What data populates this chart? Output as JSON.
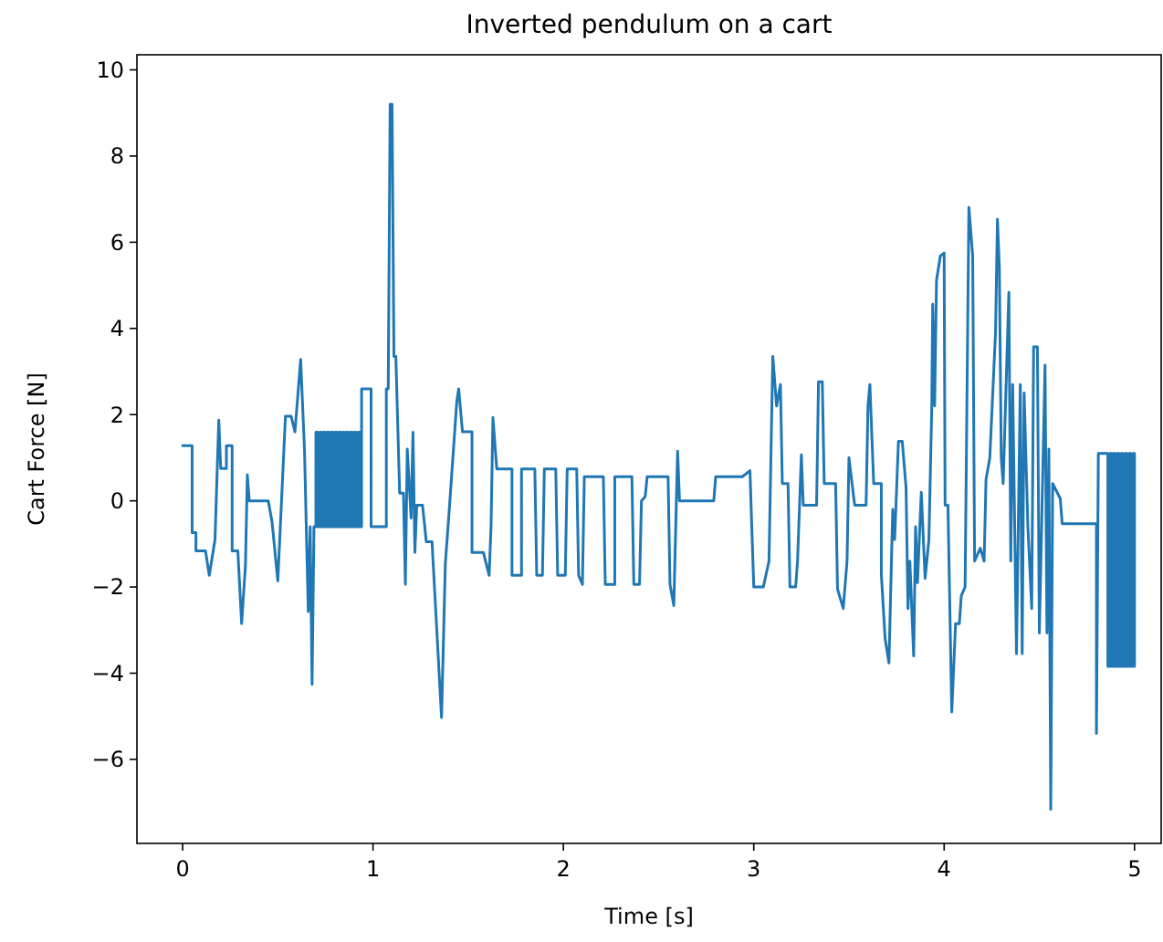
{
  "chart_data": {
    "type": "line",
    "title": "Inverted pendulum on a cart",
    "xlabel": "Time [s]",
    "ylabel": "Cart Force [N]",
    "xlim": [
      -0.24,
      5.14
    ],
    "ylim": [
      -7.95,
      10.35
    ],
    "xticks": [
      0,
      1,
      2,
      3,
      4,
      5
    ],
    "yticks": [
      {
        "value": -6,
        "label": "−6"
      },
      {
        "value": -4,
        "label": "−4"
      },
      {
        "value": -2,
        "label": "−2"
      },
      0,
      2,
      4,
      6,
      8,
      10
    ],
    "grid": false,
    "marker": "none",
    "line_style": "solid",
    "series": [
      {
        "color": "#1f77b4",
        "x": [
          0,
          0.05,
          0.05,
          0.07,
          0.07,
          0.12,
          0.14,
          0.17,
          0.19,
          0.2,
          0.23,
          0.23,
          0.26,
          0.26,
          0.29,
          0.31,
          0.33,
          0.34,
          0.35,
          0.45,
          0.47,
          0.5,
          0.54,
          0.57,
          0.59,
          0.62,
          0.64,
          0.66,
          0.67,
          0.68,
          0.69,
          0.7,
          0.7,
          0.71,
          0.71,
          0.72,
          0.72,
          0.73,
          0.73,
          0.74,
          0.74,
          0.75,
          0.75,
          0.76,
          0.76,
          0.77,
          0.77,
          0.78,
          0.78,
          0.79,
          0.79,
          0.8,
          0.8,
          0.81,
          0.81,
          0.82,
          0.82,
          0.83,
          0.83,
          0.84,
          0.84,
          0.85,
          0.85,
          0.86,
          0.86,
          0.87,
          0.87,
          0.88,
          0.88,
          0.89,
          0.89,
          0.9,
          0.9,
          0.91,
          0.91,
          0.92,
          0.92,
          0.93,
          0.93,
          0.94,
          0.94,
          0.99,
          0.99,
          1.07,
          1.07,
          1.08,
          1.09,
          1.1,
          1.11,
          1.12,
          1.14,
          1.16,
          1.17,
          1.18,
          1.2,
          1.21,
          1.22,
          1.23,
          1.26,
          1.28,
          1.31,
          1.36,
          1.38,
          1.4,
          1.44,
          1.45,
          1.47,
          1.52,
          1.52,
          1.58,
          1.61,
          1.62,
          1.63,
          1.65,
          1.73,
          1.73,
          1.78,
          1.78,
          1.85,
          1.86,
          1.89,
          1.9,
          1.96,
          1.97,
          2.01,
          2.02,
          2.07,
          2.08,
          2.1,
          2.11,
          2.21,
          2.22,
          2.27,
          2.27,
          2.36,
          2.37,
          2.4,
          2.41,
          2.43,
          2.44,
          2.55,
          2.56,
          2.58,
          2.6,
          2.61,
          2.79,
          2.8,
          2.94,
          2.98,
          3.0,
          3.05,
          3.08,
          3.1,
          3.12,
          3.14,
          3.15,
          3.18,
          3.19,
          3.22,
          3.23,
          3.25,
          3.26,
          3.33,
          3.34,
          3.36,
          3.37,
          3.43,
          3.44,
          3.47,
          3.49,
          3.5,
          3.53,
          3.59,
          3.6,
          3.61,
          3.63,
          3.67,
          3.67,
          3.69,
          3.71,
          3.73,
          3.74,
          3.76,
          3.78,
          3.8,
          3.81,
          3.82,
          3.84,
          3.85,
          3.86,
          3.88,
          3.9,
          3.92,
          3.935,
          3.94,
          3.95,
          3.96,
          3.98,
          4.0,
          4.005,
          4.02,
          4.04,
          4.06,
          4.08,
          4.09,
          4.11,
          4.13,
          4.15,
          4.16,
          4.19,
          4.21,
          4.22,
          4.24,
          4.27,
          4.28,
          4.29,
          4.3,
          4.31,
          4.34,
          4.35,
          4.36,
          4.38,
          4.4,
          4.41,
          4.42,
          4.44,
          4.46,
          4.47,
          4.49,
          4.5,
          4.53,
          4.54,
          4.55,
          4.56,
          4.57,
          4.61,
          4.62,
          4.8,
          4.8,
          4.81,
          4.86,
          4.86,
          4.87,
          4.87,
          4.88,
          4.88,
          4.89,
          4.89,
          4.9,
          4.9,
          4.91,
          4.91,
          4.92,
          4.92,
          4.93,
          4.93,
          4.94,
          4.94,
          4.95,
          4.95,
          4.96,
          4.96,
          4.97,
          4.97,
          4.98,
          4.98,
          4.99,
          4.99,
          5.0,
          5.0
        ],
        "values": [
          1.28,
          1.28,
          -0.74,
          -0.74,
          -1.16,
          -1.16,
          -1.73,
          -0.9,
          1.87,
          0.75,
          0.75,
          1.28,
          1.28,
          -1.16,
          -1.16,
          -2.85,
          -1.5,
          0.6,
          0,
          0,
          -0.5,
          -1.86,
          1.96,
          1.96,
          1.6,
          3.28,
          1.2,
          -2.57,
          -0.6,
          -4.26,
          -0.6,
          -0.6,
          1.59,
          1.59,
          -0.6,
          -0.6,
          1.59,
          1.59,
          -0.6,
          -0.6,
          1.59,
          1.59,
          -0.6,
          -0.6,
          1.59,
          1.59,
          -0.6,
          -0.6,
          1.59,
          1.59,
          -0.6,
          -0.6,
          1.59,
          1.59,
          -0.6,
          -0.6,
          1.59,
          1.59,
          -0.6,
          -0.6,
          1.59,
          1.59,
          -0.6,
          -0.6,
          1.59,
          1.59,
          -0.6,
          -0.6,
          1.59,
          1.59,
          -0.6,
          -0.6,
          1.59,
          1.59,
          -0.6,
          -0.6,
          1.59,
          1.59,
          -0.6,
          -0.6,
          2.6,
          2.6,
          -0.6,
          -0.6,
          2.6,
          2.6,
          9.2,
          9.2,
          3.35,
          3.35,
          0.18,
          0.18,
          -1.94,
          1.2,
          -0.4,
          1.59,
          -1.2,
          -0.1,
          -0.1,
          -0.95,
          -0.95,
          -5.03,
          -1.45,
          -0.25,
          2.3,
          2.6,
          1.6,
          1.6,
          -1.2,
          -1.2,
          -1.73,
          -0.6,
          1.93,
          0.74,
          0.74,
          -1.73,
          -1.73,
          0.74,
          0.74,
          -1.73,
          -1.73,
          0.74,
          0.74,
          -1.73,
          -1.73,
          0.74,
          0.74,
          -1.73,
          -1.94,
          0.56,
          0.56,
          -1.94,
          -1.94,
          0.56,
          0.56,
          -1.94,
          -1.94,
          0,
          0.1,
          0.56,
          0.56,
          -1.94,
          -2.43,
          1.15,
          0,
          0,
          0.56,
          0.56,
          0.7,
          -2.0,
          -2.0,
          -1.4,
          3.35,
          2.2,
          2.7,
          0.4,
          0.4,
          -2.0,
          -2.0,
          -1.4,
          1.07,
          -0.1,
          -0.1,
          2.76,
          2.76,
          0.4,
          0.4,
          -2.05,
          -2.5,
          -1.4,
          1.0,
          -0.1,
          -0.1,
          2.2,
          2.7,
          0.4,
          0.4,
          -1.7,
          -3.2,
          -3.76,
          -0.2,
          -0.9,
          1.38,
          1.38,
          0.3,
          -2.5,
          -1.4,
          -3.6,
          -0.6,
          -1.9,
          0.2,
          -1.8,
          -0.9,
          2.17,
          4.56,
          2.2,
          5.12,
          5.68,
          5.75,
          -0.1,
          -0.1,
          -4.9,
          -2.85,
          -2.85,
          -2.2,
          -2.0,
          6.81,
          5.68,
          -1.4,
          -1.1,
          -1.4,
          0.5,
          1.0,
          3.92,
          6.53,
          5.4,
          1.0,
          0.4,
          4.84,
          -1.4,
          2.7,
          -3.55,
          2.7,
          -3.55,
          2.5,
          -0.6,
          -2.5,
          3.57,
          3.57,
          -3.07,
          3.15,
          -3.07,
          1.2,
          -7.16,
          0.4,
          0.05,
          -0.53,
          -0.53,
          -5.4,
          1.1,
          1.1,
          -3.84,
          -3.84,
          1.1,
          1.1,
          -3.84,
          -3.84,
          1.1,
          1.1,
          -3.84,
          -3.84,
          1.1,
          1.1,
          -3.84,
          -3.84,
          1.1,
          1.1,
          -3.84,
          -3.84,
          1.1,
          1.1,
          -3.84,
          -3.84,
          1.1,
          1.1,
          -3.84,
          -3.84,
          1.1,
          1.1,
          -3.84
        ]
      }
    ]
  }
}
